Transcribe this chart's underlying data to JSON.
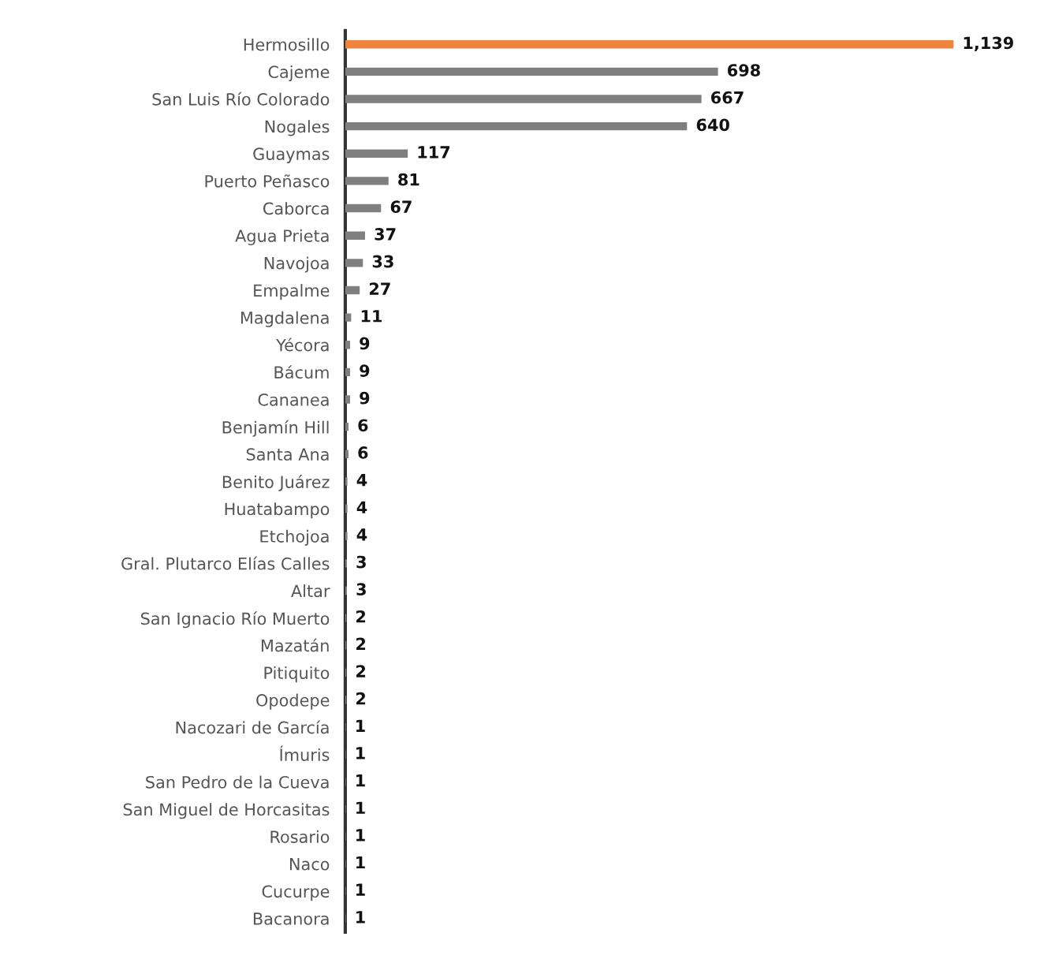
{
  "chart_data": {
    "type": "bar",
    "orientation": "horizontal",
    "tick_labels": "y",
    "grid": false,
    "legend": false,
    "categories": [
      "Hermosillo",
      "Cajeme",
      "San Luis Río Colorado",
      "Nogales",
      "Guaymas",
      "Puerto Peñasco",
      "Caborca",
      "Agua Prieta",
      "Navojoa",
      "Empalme",
      "Magdalena",
      "Yécora",
      "Bácum",
      "Cananea",
      "Benjamín Hill",
      "Santa Ana",
      "Benito Juárez",
      "Huatabampo",
      "Etchojoa",
      "Gral. Plutarco Elías Calles",
      "Altar",
      "San Ignacio Río Muerto",
      "Mazatán",
      "Pitiquito",
      "Opodepe",
      "Nacozari de García",
      "Ímuris",
      "San Pedro de la Cueva",
      "San Miguel de Horcasitas",
      "Rosario",
      "Naco",
      "Cucurpe",
      "Bacanora"
    ],
    "values": [
      1139,
      698,
      667,
      640,
      117,
      81,
      67,
      37,
      33,
      27,
      11,
      9,
      9,
      9,
      6,
      6,
      4,
      4,
      4,
      3,
      3,
      2,
      2,
      2,
      2,
      1,
      1,
      1,
      1,
      1,
      1,
      1,
      1
    ],
    "value_labels": [
      "1,139",
      "698",
      "667",
      "640",
      "117",
      "81",
      "67",
      "37",
      "33",
      "27",
      "11",
      "9",
      "9",
      "9",
      "6",
      "6",
      "4",
      "4",
      "4",
      "3",
      "3",
      "2",
      "2",
      "2",
      "2",
      "1",
      "1",
      "1",
      "1",
      "1",
      "1",
      "1",
      "1"
    ],
    "colors": [
      "#f0823a",
      "#7f7f7f",
      "#7f7f7f",
      "#7f7f7f",
      "#7f7f7f",
      "#7f7f7f",
      "#7f7f7f",
      "#7f7f7f",
      "#7f7f7f",
      "#7f7f7f",
      "#7f7f7f",
      "#7f7f7f",
      "#7f7f7f",
      "#7f7f7f",
      "#7f7f7f",
      "#7f7f7f",
      "#7f7f7f",
      "#7f7f7f",
      "#7f7f7f",
      "#7f7f7f",
      "#7f7f7f",
      "#7f7f7f",
      "#7f7f7f",
      "#7f7f7f",
      "#7f7f7f",
      "#7f7f7f",
      "#7f7f7f",
      "#7f7f7f",
      "#7f7f7f",
      "#7f7f7f",
      "#7f7f7f",
      "#7f7f7f",
      "#7f7f7f"
    ]
  }
}
